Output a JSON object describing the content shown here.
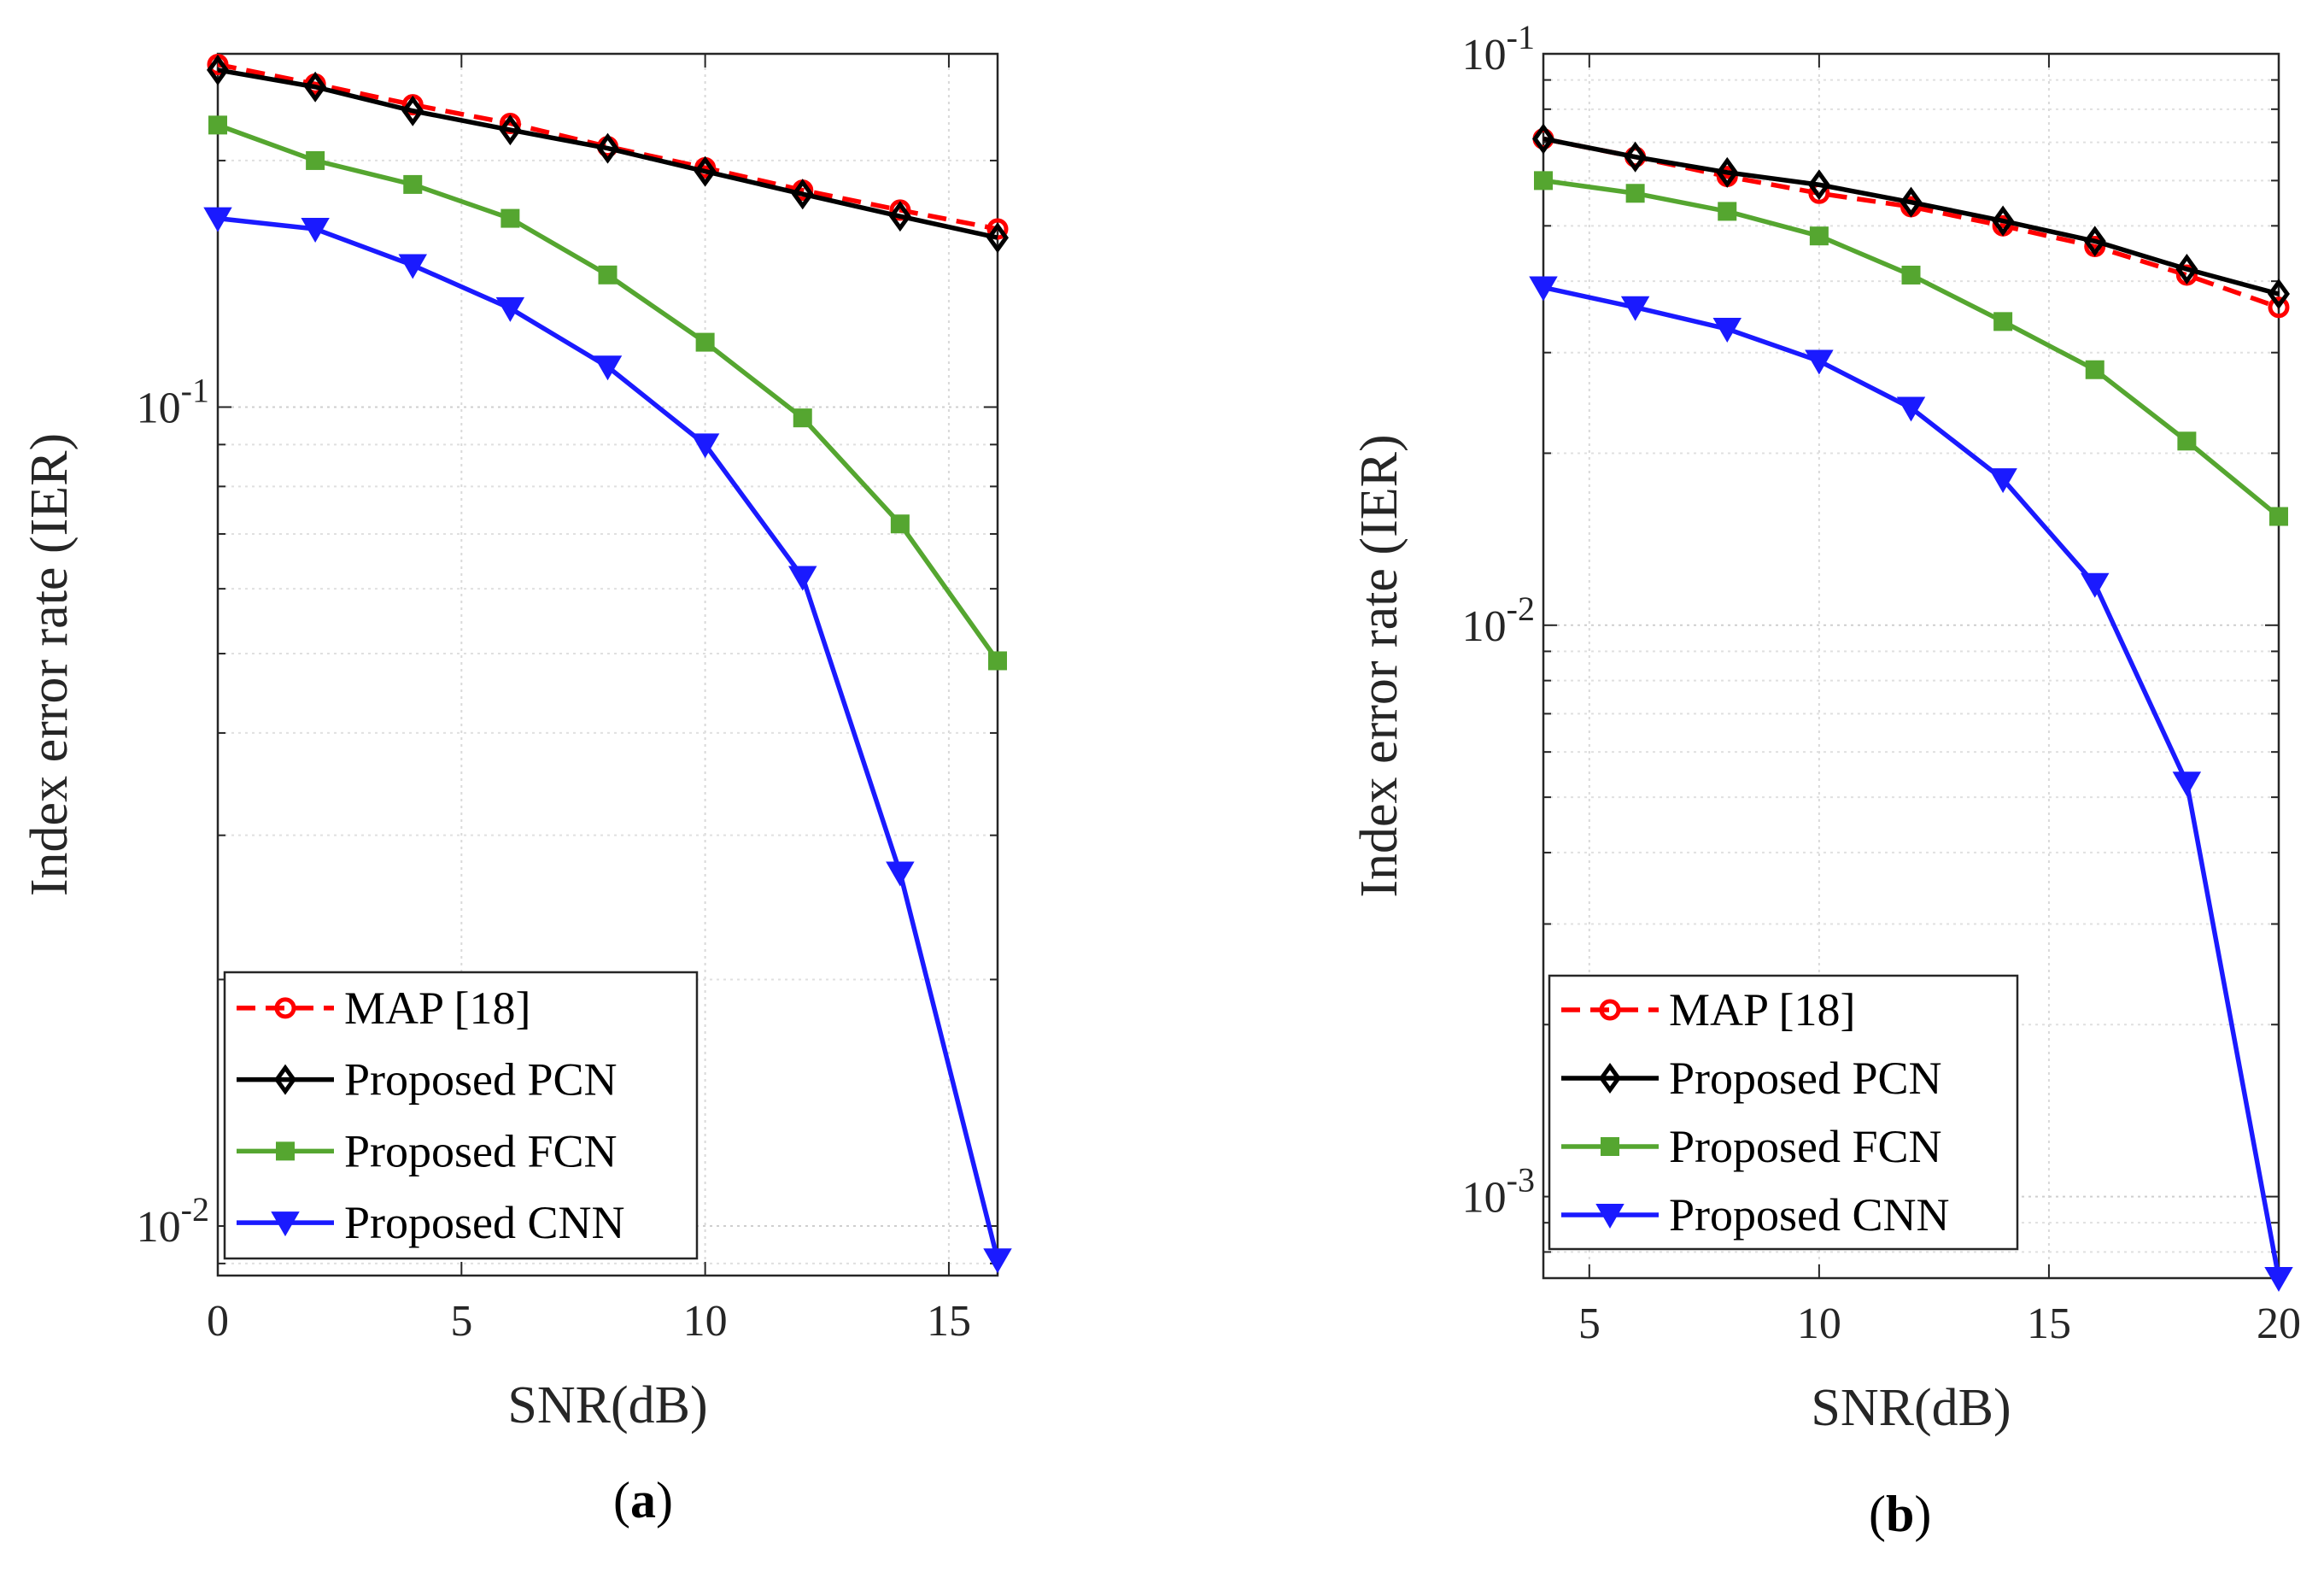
{
  "captions": [
    "(a)",
    "(b)"
  ],
  "chart_data": [
    {
      "type": "line",
      "title": "",
      "xlabel": "SNR(dB)",
      "ylabel": "Index error rate (IER)",
      "yscale": "log",
      "xlim": [
        0,
        16
      ],
      "ylim": [
        0.0087,
        0.27
      ],
      "xticks": [
        0,
        5,
        10,
        15
      ],
      "yticks": [
        {
          "value": 0.1,
          "label": "10^-1"
        },
        {
          "value": 0.01,
          "label": "10^-2"
        }
      ],
      "grid": true,
      "legend_position": "bottom-left",
      "x": [
        0,
        2,
        4,
        6,
        8,
        10,
        12,
        14,
        16
      ],
      "series": [
        {
          "name": "MAP [18]",
          "color": "#ff0000",
          "dash": true,
          "marker": "circle",
          "values": [
            0.262,
            0.248,
            0.234,
            0.222,
            0.208,
            0.196,
            0.184,
            0.174,
            0.165
          ]
        },
        {
          "name": "Proposed PCN",
          "color": "#000000",
          "dash": false,
          "marker": "diamond",
          "values": [
            0.258,
            0.246,
            0.23,
            0.218,
            0.207,
            0.194,
            0.182,
            0.171,
            0.161
          ]
        },
        {
          "name": "Proposed FCN",
          "color": "#55a630",
          "dash": false,
          "marker": "square",
          "values": [
            0.221,
            0.2,
            0.187,
            0.17,
            0.145,
            0.12,
            0.097,
            0.072,
            0.049
          ]
        },
        {
          "name": "Proposed CNN",
          "color": "#1a1aff",
          "dash": false,
          "marker": "triangle-down",
          "values": [
            0.17,
            0.165,
            0.149,
            0.132,
            0.112,
            0.09,
            0.062,
            0.027,
            0.0091
          ]
        }
      ]
    },
    {
      "type": "line",
      "title": "",
      "xlabel": "SNR(dB)",
      "ylabel": "Index error rate (IER)",
      "yscale": "log",
      "xlim": [
        4,
        20
      ],
      "ylim": [
        0.00072,
        0.1
      ],
      "xticks": [
        5,
        10,
        15,
        20
      ],
      "yticks": [
        {
          "value": 0.1,
          "label": "10^-1"
        },
        {
          "value": 0.01,
          "label": "10^-2"
        },
        {
          "value": 0.001,
          "label": "10^-3"
        }
      ],
      "grid": true,
      "legend_position": "bottom-left",
      "x": [
        4,
        6,
        8,
        10,
        12,
        14,
        16,
        18,
        20
      ],
      "series": [
        {
          "name": "MAP [18]",
          "color": "#ff0000",
          "dash": true,
          "marker": "circle",
          "values": [
            0.071,
            0.066,
            0.061,
            0.057,
            0.054,
            0.05,
            0.046,
            0.041,
            0.036
          ]
        },
        {
          "name": "Proposed PCN",
          "color": "#000000",
          "dash": false,
          "marker": "diamond",
          "values": [
            0.071,
            0.066,
            0.062,
            0.059,
            0.055,
            0.051,
            0.047,
            0.042,
            0.038
          ]
        },
        {
          "name": "Proposed FCN",
          "color": "#55a630",
          "dash": false,
          "marker": "square",
          "values": [
            0.06,
            0.057,
            0.053,
            0.048,
            0.041,
            0.034,
            0.028,
            0.021,
            0.0155
          ]
        },
        {
          "name": "Proposed CNN",
          "color": "#1a1aff",
          "dash": false,
          "marker": "triangle-down",
          "values": [
            0.039,
            0.036,
            0.033,
            0.029,
            0.024,
            0.018,
            0.0118,
            0.0053,
            0.00072
          ]
        }
      ]
    }
  ]
}
